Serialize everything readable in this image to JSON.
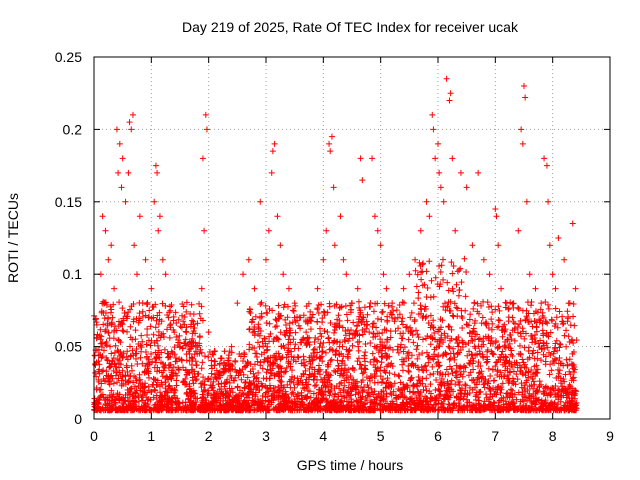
{
  "chart_data": {
    "type": "scatter",
    "title": "Day 219 of 2025, Rate Of TEC Index for receiver ucak",
    "xlabel": "GPS time / hours",
    "ylabel": "ROTI / TECUs",
    "xlim": [
      0,
      9
    ],
    "ylim": [
      0,
      0.25
    ],
    "x_ticks": [
      "0",
      "1",
      "2",
      "3",
      "4",
      "5",
      "6",
      "7",
      "8",
      "9"
    ],
    "y_ticks": [
      "0",
      "0.05",
      "0.1",
      "0.15",
      "0.2",
      "0.25"
    ],
    "grid": true,
    "marker": "+",
    "color": "#ff0000",
    "series": [
      {
        "points": [
          [
            0.05,
            0.065
          ],
          [
            0.08,
            0.04
          ],
          [
            0.1,
            0.02
          ],
          [
            0.12,
            0.1
          ],
          [
            0.15,
            0.14
          ],
          [
            0.18,
            0.08
          ],
          [
            0.2,
            0.13
          ],
          [
            0.22,
            0.03
          ],
          [
            0.25,
            0.11
          ],
          [
            0.28,
            0.05
          ],
          [
            0.3,
            0.12
          ],
          [
            0.35,
            0.09
          ],
          [
            0.4,
            0.2
          ],
          [
            0.42,
            0.17
          ],
          [
            0.45,
            0.19
          ],
          [
            0.48,
            0.16
          ],
          [
            0.5,
            0.18
          ],
          [
            0.55,
            0.15
          ],
          [
            0.6,
            0.17
          ],
          [
            0.62,
            0.205
          ],
          [
            0.65,
            0.2
          ],
          [
            0.68,
            0.21
          ],
          [
            0.7,
            0.12
          ],
          [
            0.75,
            0.1
          ],
          [
            0.8,
            0.14
          ],
          [
            0.85,
            0.08
          ],
          [
            0.9,
            0.11
          ],
          [
            0.95,
            0.07
          ],
          [
            1.0,
            0.09
          ],
          [
            1.05,
            0.15
          ],
          [
            1.08,
            0.175
          ],
          [
            1.1,
            0.17
          ],
          [
            1.12,
            0.13
          ],
          [
            1.15,
            0.14
          ],
          [
            1.2,
            0.11
          ],
          [
            1.25,
            0.1
          ],
          [
            1.3,
            0.07
          ],
          [
            1.4,
            0.06
          ],
          [
            1.5,
            0.05
          ],
          [
            1.6,
            0.055
          ],
          [
            1.7,
            0.05
          ],
          [
            1.8,
            0.045
          ],
          [
            1.88,
            0.09
          ],
          [
            1.9,
            0.18
          ],
          [
            1.92,
            0.13
          ],
          [
            1.95,
            0.21
          ],
          [
            1.97,
            0.2
          ],
          [
            2.0,
            0.06
          ],
          [
            2.1,
            0.04
          ],
          [
            2.2,
            0.03
          ],
          [
            2.3,
            0.035
          ],
          [
            2.4,
            0.05
          ],
          [
            2.5,
            0.08
          ],
          [
            2.6,
            0.1
          ],
          [
            2.7,
            0.11
          ],
          [
            2.8,
            0.09
          ],
          [
            2.9,
            0.15
          ],
          [
            3.0,
            0.11
          ],
          [
            3.05,
            0.13
          ],
          [
            3.1,
            0.17
          ],
          [
            3.12,
            0.185
          ],
          [
            3.15,
            0.19
          ],
          [
            3.2,
            0.14
          ],
          [
            3.25,
            0.12
          ],
          [
            3.3,
            0.1
          ],
          [
            3.4,
            0.09
          ],
          [
            3.5,
            0.08
          ],
          [
            3.6,
            0.07
          ],
          [
            3.7,
            0.06
          ],
          [
            3.8,
            0.07
          ],
          [
            3.9,
            0.09
          ],
          [
            4.0,
            0.11
          ],
          [
            4.05,
            0.13
          ],
          [
            4.1,
            0.19
          ],
          [
            4.12,
            0.185
          ],
          [
            4.15,
            0.195
          ],
          [
            4.18,
            0.16
          ],
          [
            4.2,
            0.12
          ],
          [
            4.3,
            0.14
          ],
          [
            4.35,
            0.11
          ],
          [
            4.4,
            0.1
          ],
          [
            4.5,
            0.08
          ],
          [
            4.6,
            0.09
          ],
          [
            4.65,
            0.18
          ],
          [
            4.68,
            0.165
          ],
          [
            4.7,
            0.07
          ],
          [
            4.8,
            0.06
          ],
          [
            4.85,
            0.18
          ],
          [
            4.9,
            0.14
          ],
          [
            4.95,
            0.13
          ],
          [
            5.0,
            0.12
          ],
          [
            5.05,
            0.1
          ],
          [
            5.1,
            0.09
          ],
          [
            5.2,
            0.08
          ],
          [
            5.3,
            0.07
          ],
          [
            5.4,
            0.09
          ],
          [
            5.5,
            0.1
          ],
          [
            5.6,
            0.11
          ],
          [
            5.7,
            0.13
          ],
          [
            5.8,
            0.15
          ],
          [
            5.85,
            0.14
          ],
          [
            5.9,
            0.21
          ],
          [
            5.92,
            0.2
          ],
          [
            5.95,
            0.18
          ],
          [
            6.0,
            0.19
          ],
          [
            6.02,
            0.17
          ],
          [
            6.05,
            0.16
          ],
          [
            6.1,
            0.15
          ],
          [
            6.15,
            0.235
          ],
          [
            6.2,
            0.22
          ],
          [
            6.22,
            0.225
          ],
          [
            6.25,
            0.18
          ],
          [
            6.3,
            0.13
          ],
          [
            6.4,
            0.17
          ],
          [
            6.5,
            0.16
          ],
          [
            6.6,
            0.12
          ],
          [
            6.7,
            0.17
          ],
          [
            6.8,
            0.11
          ],
          [
            6.9,
            0.1
          ],
          [
            7.0,
            0.145
          ],
          [
            7.02,
            0.14
          ],
          [
            7.05,
            0.12
          ],
          [
            7.1,
            0.09
          ],
          [
            7.2,
            0.08
          ],
          [
            7.3,
            0.07
          ],
          [
            7.4,
            0.13
          ],
          [
            7.45,
            0.2
          ],
          [
            7.48,
            0.19
          ],
          [
            7.5,
            0.23
          ],
          [
            7.52,
            0.222
          ],
          [
            7.55,
            0.15
          ],
          [
            7.6,
            0.1
          ],
          [
            7.7,
            0.09
          ],
          [
            7.8,
            0.08
          ],
          [
            7.85,
            0.18
          ],
          [
            7.9,
            0.175
          ],
          [
            7.92,
            0.15
          ],
          [
            7.95,
            0.12
          ],
          [
            8.0,
            0.1
          ],
          [
            8.05,
            0.09
          ],
          [
            8.1,
            0.125
          ],
          [
            8.2,
            0.11
          ],
          [
            8.3,
            0.08
          ],
          [
            8.35,
            0.135
          ],
          [
            8.4,
            0.09
          ]
        ]
      }
    ]
  }
}
